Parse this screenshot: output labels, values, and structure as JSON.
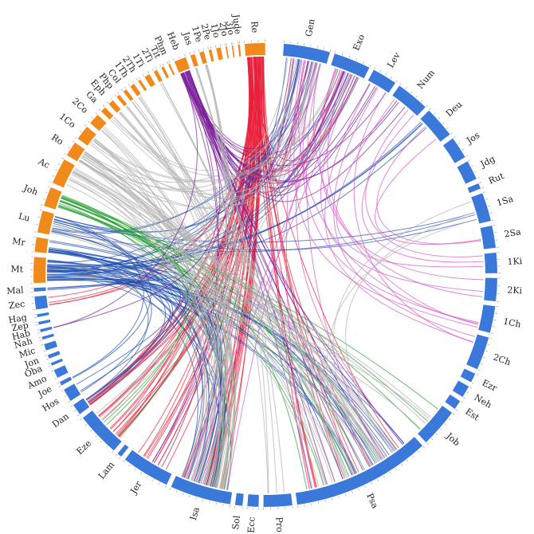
{
  "diagram": {
    "type": "chord",
    "colors": {
      "old_testament_arc": "#3a78d9",
      "new_testament_arc": "#f08a1c",
      "link_red": "#e8203a",
      "link_purple": "#7a1f9a",
      "link_blue": "#2050b0",
      "link_green": "#2aa033",
      "link_gray": "#b4b4b4",
      "link_pink": "#d455c8"
    },
    "books": [
      {
        "name": "Gen",
        "group": "ot"
      },
      {
        "name": "Exo",
        "group": "ot"
      },
      {
        "name": "Lev",
        "group": "ot"
      },
      {
        "name": "Num",
        "group": "ot"
      },
      {
        "name": "Deu",
        "group": "ot"
      },
      {
        "name": "Jos",
        "group": "ot"
      },
      {
        "name": "Jdg",
        "group": "ot"
      },
      {
        "name": "Rut",
        "group": "ot"
      },
      {
        "name": "1Sa",
        "group": "ot"
      },
      {
        "name": "2Sa",
        "group": "ot"
      },
      {
        "name": "1Ki",
        "group": "ot"
      },
      {
        "name": "2Ki",
        "group": "ot"
      },
      {
        "name": "1Ch",
        "group": "ot"
      },
      {
        "name": "2Ch",
        "group": "ot"
      },
      {
        "name": "Ezr",
        "group": "ot"
      },
      {
        "name": "Neh",
        "group": "ot"
      },
      {
        "name": "Est",
        "group": "ot"
      },
      {
        "name": "Job",
        "group": "ot"
      },
      {
        "name": "Psa",
        "group": "ot"
      },
      {
        "name": "Pro",
        "group": "ot"
      },
      {
        "name": "Ecc",
        "group": "ot"
      },
      {
        "name": "Sol",
        "group": "ot"
      },
      {
        "name": "Isa",
        "group": "ot"
      },
      {
        "name": "Jer",
        "group": "ot"
      },
      {
        "name": "Lam",
        "group": "ot"
      },
      {
        "name": "Eze",
        "group": "ot"
      },
      {
        "name": "Dan",
        "group": "ot"
      },
      {
        "name": "Hos",
        "group": "ot"
      },
      {
        "name": "Joe",
        "group": "ot"
      },
      {
        "name": "Amo",
        "group": "ot"
      },
      {
        "name": "Oba",
        "group": "ot"
      },
      {
        "name": "Jon",
        "group": "ot"
      },
      {
        "name": "Mic",
        "group": "ot"
      },
      {
        "name": "Nah",
        "group": "ot"
      },
      {
        "name": "Hab",
        "group": "ot"
      },
      {
        "name": "Zep",
        "group": "ot"
      },
      {
        "name": "Hag",
        "group": "ot"
      },
      {
        "name": "Zec",
        "group": "ot"
      },
      {
        "name": "Mal",
        "group": "ot"
      },
      {
        "name": "Mt",
        "group": "nt"
      },
      {
        "name": "Mr",
        "group": "nt"
      },
      {
        "name": "Lu",
        "group": "nt"
      },
      {
        "name": "Joh",
        "group": "nt"
      },
      {
        "name": "Ac",
        "group": "nt"
      },
      {
        "name": "Ro",
        "group": "nt"
      },
      {
        "name": "1Co",
        "group": "nt"
      },
      {
        "name": "2Co",
        "group": "nt"
      },
      {
        "name": "Ga",
        "group": "nt"
      },
      {
        "name": "Eph",
        "group": "nt"
      },
      {
        "name": "Php",
        "group": "nt"
      },
      {
        "name": "Col",
        "group": "nt"
      },
      {
        "name": "1Th",
        "group": "nt"
      },
      {
        "name": "2Th",
        "group": "nt"
      },
      {
        "name": "1Ti",
        "group": "nt"
      },
      {
        "name": "2Ti",
        "group": "nt"
      },
      {
        "name": "Tit",
        "group": "nt"
      },
      {
        "name": "Phm",
        "group": "nt"
      },
      {
        "name": "Heb",
        "group": "nt"
      },
      {
        "name": "Jas",
        "group": "nt"
      },
      {
        "name": "1Pe",
        "group": "nt"
      },
      {
        "name": "2Pe",
        "group": "nt"
      },
      {
        "name": "1Jo",
        "group": "nt"
      },
      {
        "name": "2Jo",
        "group": "nt"
      },
      {
        "name": "3Jo",
        "group": "nt"
      },
      {
        "name": "Jude",
        "group": "nt"
      },
      {
        "name": "Re",
        "group": "nt"
      }
    ],
    "links": [
      {
        "from": "Re",
        "to": "Isa",
        "color": "red",
        "count": 18
      },
      {
        "from": "Re",
        "to": "Jer",
        "color": "red",
        "count": 10
      },
      {
        "from": "Re",
        "to": "Eze",
        "color": "red",
        "count": 14
      },
      {
        "from": "Re",
        "to": "Dan",
        "color": "red",
        "count": 10
      },
      {
        "from": "Re",
        "to": "Psa",
        "color": "red",
        "count": 10
      },
      {
        "from": "Re",
        "to": "Exo",
        "color": "red",
        "count": 6
      },
      {
        "from": "Re",
        "to": "Gen",
        "color": "red",
        "count": 4
      },
      {
        "from": "Re",
        "to": "Zec",
        "color": "red",
        "count": 4
      },
      {
        "from": "Heb",
        "to": "Psa",
        "color": "purple",
        "count": 10
      },
      {
        "from": "Heb",
        "to": "Gen",
        "color": "purple",
        "count": 7
      },
      {
        "from": "Heb",
        "to": "Exo",
        "color": "purple",
        "count": 6
      },
      {
        "from": "Heb",
        "to": "Lev",
        "color": "purple",
        "count": 4
      },
      {
        "from": "Heb",
        "to": "Num",
        "color": "purple",
        "count": 3
      },
      {
        "from": "Heb",
        "to": "Jer",
        "color": "purple",
        "count": 3
      },
      {
        "from": "Mt",
        "to": "Isa",
        "color": "blue",
        "count": 10
      },
      {
        "from": "Mt",
        "to": "Psa",
        "color": "blue",
        "count": 9
      },
      {
        "from": "Mt",
        "to": "Exo",
        "color": "blue",
        "count": 5
      },
      {
        "from": "Mt",
        "to": "Deu",
        "color": "blue",
        "count": 4
      },
      {
        "from": "Mt",
        "to": "Dan",
        "color": "blue",
        "count": 5
      },
      {
        "from": "Mt",
        "to": "Gen",
        "color": "blue",
        "count": 4
      },
      {
        "from": "Mr",
        "to": "Isa",
        "color": "blue",
        "count": 6
      },
      {
        "from": "Mr",
        "to": "Psa",
        "color": "blue",
        "count": 5
      },
      {
        "from": "Lu",
        "to": "Isa",
        "color": "blue",
        "count": 6
      },
      {
        "from": "Lu",
        "to": "1Sa",
        "color": "blue",
        "count": 3
      },
      {
        "from": "Lu",
        "to": "Gen",
        "color": "blue",
        "count": 4
      },
      {
        "from": "Joh",
        "to": "Psa",
        "color": "green",
        "count": 7
      },
      {
        "from": "Joh",
        "to": "Isa",
        "color": "green",
        "count": 5
      },
      {
        "from": "Joh",
        "to": "Job",
        "color": "green",
        "count": 3
      },
      {
        "from": "Joh",
        "to": "Eze",
        "color": "green",
        "count": 3
      },
      {
        "from": "Ac",
        "to": "Isa",
        "color": "gray",
        "count": 6
      },
      {
        "from": "Ac",
        "to": "Psa",
        "color": "gray",
        "count": 7
      },
      {
        "from": "Ro",
        "to": "Psa",
        "color": "gray",
        "count": 8
      },
      {
        "from": "Ro",
        "to": "Isa",
        "color": "gray",
        "count": 7
      },
      {
        "from": "Ro",
        "to": "Gen",
        "color": "gray",
        "count": 5
      },
      {
        "from": "1Co",
        "to": "Isa",
        "color": "gray",
        "count": 5
      },
      {
        "from": "1Co",
        "to": "Exo",
        "color": "gray",
        "count": 4
      },
      {
        "from": "2Co",
        "to": "Isa",
        "color": "gray",
        "count": 4
      },
      {
        "from": "Ga",
        "to": "Gen",
        "color": "gray",
        "count": 4
      },
      {
        "from": "Eph",
        "to": "Psa",
        "color": "gray",
        "count": 4
      },
      {
        "from": "Php",
        "to": "Isa",
        "color": "gray",
        "count": 3
      },
      {
        "from": "Col",
        "to": "Psa",
        "color": "gray",
        "count": 3
      },
      {
        "from": "1Pe",
        "to": "Isa",
        "color": "gray",
        "count": 5
      },
      {
        "from": "Jas",
        "to": "Pro",
        "color": "gray",
        "count": 4
      },
      {
        "from": "1Th",
        "to": "Isa",
        "color": "gray",
        "count": 3
      },
      {
        "from": "2Ti",
        "to": "Psa",
        "color": "gray",
        "count": 3
      },
      {
        "from": "Mt",
        "to": "Job",
        "color": "gray",
        "count": 4
      },
      {
        "from": "Lu",
        "to": "Psa",
        "color": "gray",
        "count": 5
      },
      {
        "from": "Gen",
        "to": "1Ch",
        "color": "pink",
        "count": 4
      },
      {
        "from": "Exo",
        "to": "2Ki",
        "color": "pink",
        "count": 3
      },
      {
        "from": "Lev",
        "to": "2Ch",
        "color": "pink",
        "count": 3
      },
      {
        "from": "Num",
        "to": "1Ki",
        "color": "pink",
        "count": 3
      },
      {
        "from": "Deu",
        "to": "2Sa",
        "color": "pink",
        "count": 2
      },
      {
        "from": "Gen",
        "to": "Psa",
        "color": "pink",
        "count": 3
      },
      {
        "from": "Exo",
        "to": "Isa",
        "color": "pink",
        "count": 3
      },
      {
        "from": "Gen",
        "to": "Eze",
        "color": "gray",
        "count": 3
      },
      {
        "from": "Psa",
        "to": "1Sa",
        "color": "gray",
        "count": 3
      },
      {
        "from": "Mt",
        "to": "Mal",
        "color": "blue",
        "count": 3
      },
      {
        "from": "Mr",
        "to": "Hos",
        "color": "blue",
        "count": 3
      },
      {
        "from": "Lu",
        "to": "Joe",
        "color": "blue",
        "count": 2
      },
      {
        "from": "Heb",
        "to": "Hab",
        "color": "purple",
        "count": 2
      }
    ]
  }
}
